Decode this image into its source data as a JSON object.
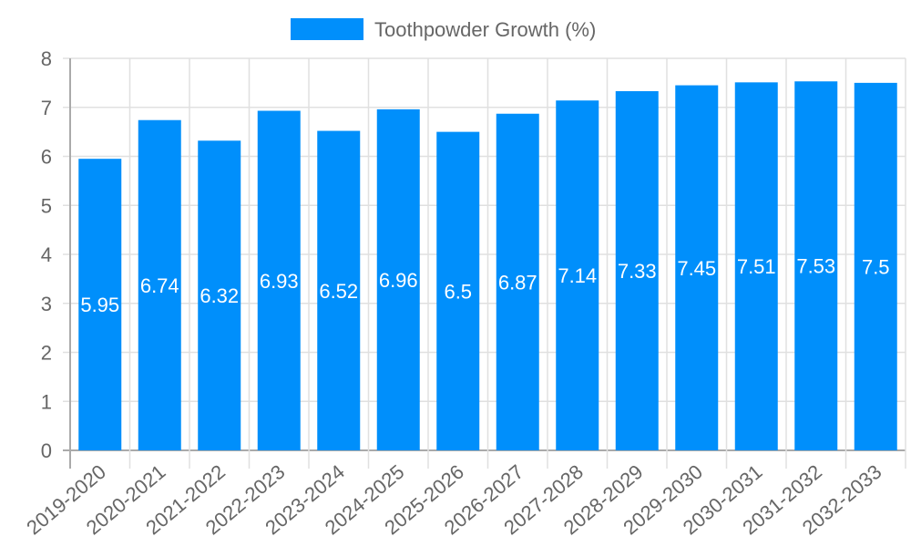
{
  "legend": {
    "label": "Toothpowder Growth (%)",
    "color": "#008ffb"
  },
  "chart_data": {
    "type": "bar",
    "title": "",
    "xlabel": "",
    "ylabel": "",
    "ylim": [
      0,
      8
    ],
    "yticks": [
      0,
      1,
      2,
      3,
      4,
      5,
      6,
      7,
      8
    ],
    "grid": true,
    "legend_position": "top",
    "categories": [
      "2019-2020",
      "2020-2021",
      "2021-2022",
      "2022-2023",
      "2023-2024",
      "2024-2025",
      "2025-2026",
      "2026-2027",
      "2027-2028",
      "2028-2029",
      "2029-2030",
      "2030-2031",
      "2031-2032",
      "2032-2033"
    ],
    "series": [
      {
        "name": "Toothpowder Growth (%)",
        "color": "#008ffb",
        "values": [
          5.95,
          6.74,
          6.32,
          6.93,
          6.52,
          6.96,
          6.5,
          6.87,
          7.14,
          7.33,
          7.45,
          7.51,
          7.53,
          7.5
        ]
      }
    ]
  }
}
